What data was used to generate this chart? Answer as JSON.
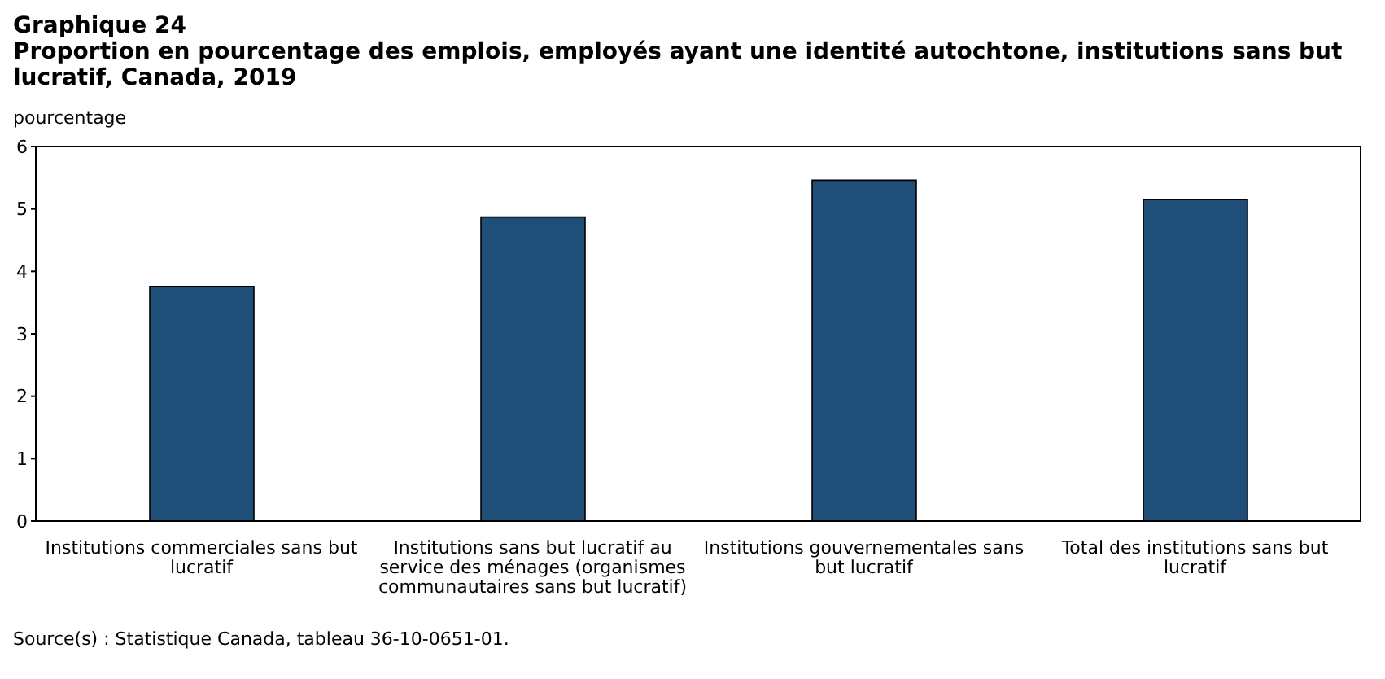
{
  "chart_data": {
    "type": "bar",
    "title": "Graphique 24",
    "subtitle": "Proportion en pourcentage des emplois, employés ayant une identité autochtone, institutions sans but lucratif, Canada, 2019",
    "ylabel": "pourcentage",
    "categories": [
      "Institutions commerciales sans but lucratif",
      "Institutions sans but lucratif au service des ménages (organismes communautaires sans but lucratif)",
      "Institutions gouvernementales sans but lucratif",
      "Total des institutions sans but lucratif"
    ],
    "values": [
      3.76,
      4.87,
      5.46,
      5.15
    ],
    "color": "#1f4e79",
    "ylim": [
      0,
      6
    ],
    "yticks": [
      0,
      1,
      2,
      3,
      4,
      5,
      6
    ],
    "grid": false,
    "annotations": [
      "Source(s) : Statistique Canada, tableau 36-10-0651-01."
    ]
  }
}
